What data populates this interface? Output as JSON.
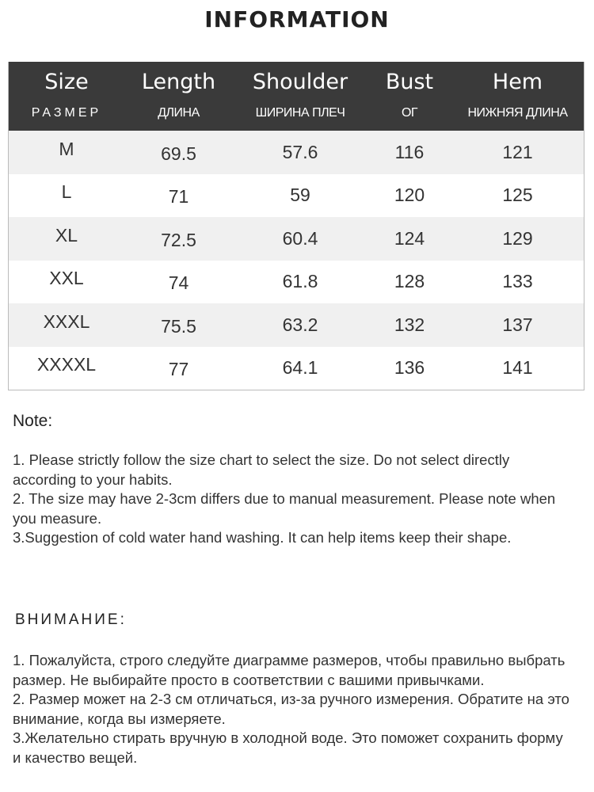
{
  "title": "INFORMATION",
  "table": {
    "headers": [
      {
        "en": "Size",
        "ru": "РАЗМЕР"
      },
      {
        "en": "Length",
        "ru": "ДЛИНА"
      },
      {
        "en": "Shoulder",
        "ru": "ШИРИНА ПЛЕЧ"
      },
      {
        "en": "Bust",
        "ru": "ОГ"
      },
      {
        "en": "Hem",
        "ru": "НИЖНЯЯ ДЛИНА"
      }
    ],
    "rows": [
      [
        "M",
        "69.5",
        "57.6",
        "116",
        "121"
      ],
      [
        "L",
        "71",
        "59",
        "120",
        "125"
      ],
      [
        "XL",
        "72.5",
        "60.4",
        "124",
        "129"
      ],
      [
        "XXL",
        "74",
        "61.8",
        "128",
        "133"
      ],
      [
        "XXXL",
        "75.5",
        "63.2",
        "132",
        "137"
      ],
      [
        "XXXXL",
        "77",
        "64.1",
        "136",
        "141"
      ]
    ]
  },
  "note": {
    "heading": "Note:",
    "items": [
      "1. Please strictly follow the size chart  to select the size. Do not select directly according to your habits.",
      "2. The size may have 2-3cm differs due to manual measurement. Please note when you measure.",
      "3.Suggestion of cold water hand washing. It can help items keep their shape."
    ]
  },
  "note_ru": {
    "heading": "ВНИМАНИЕ:",
    "items": [
      "1. Пожалуйста, строго следуйте диаграмме размеров, чтобы правильно выбрать размер. Не выбирайте просто в соответствии с вашими привычками.",
      "2. Размер может на 2-3 см отличаться, из-за ручного измерения. Обратите на это внимание, когда вы измеряете.",
      "3.Желательно стирать вручную в холодной воде. Это поможет сохранить форму и качество вещей."
    ]
  }
}
